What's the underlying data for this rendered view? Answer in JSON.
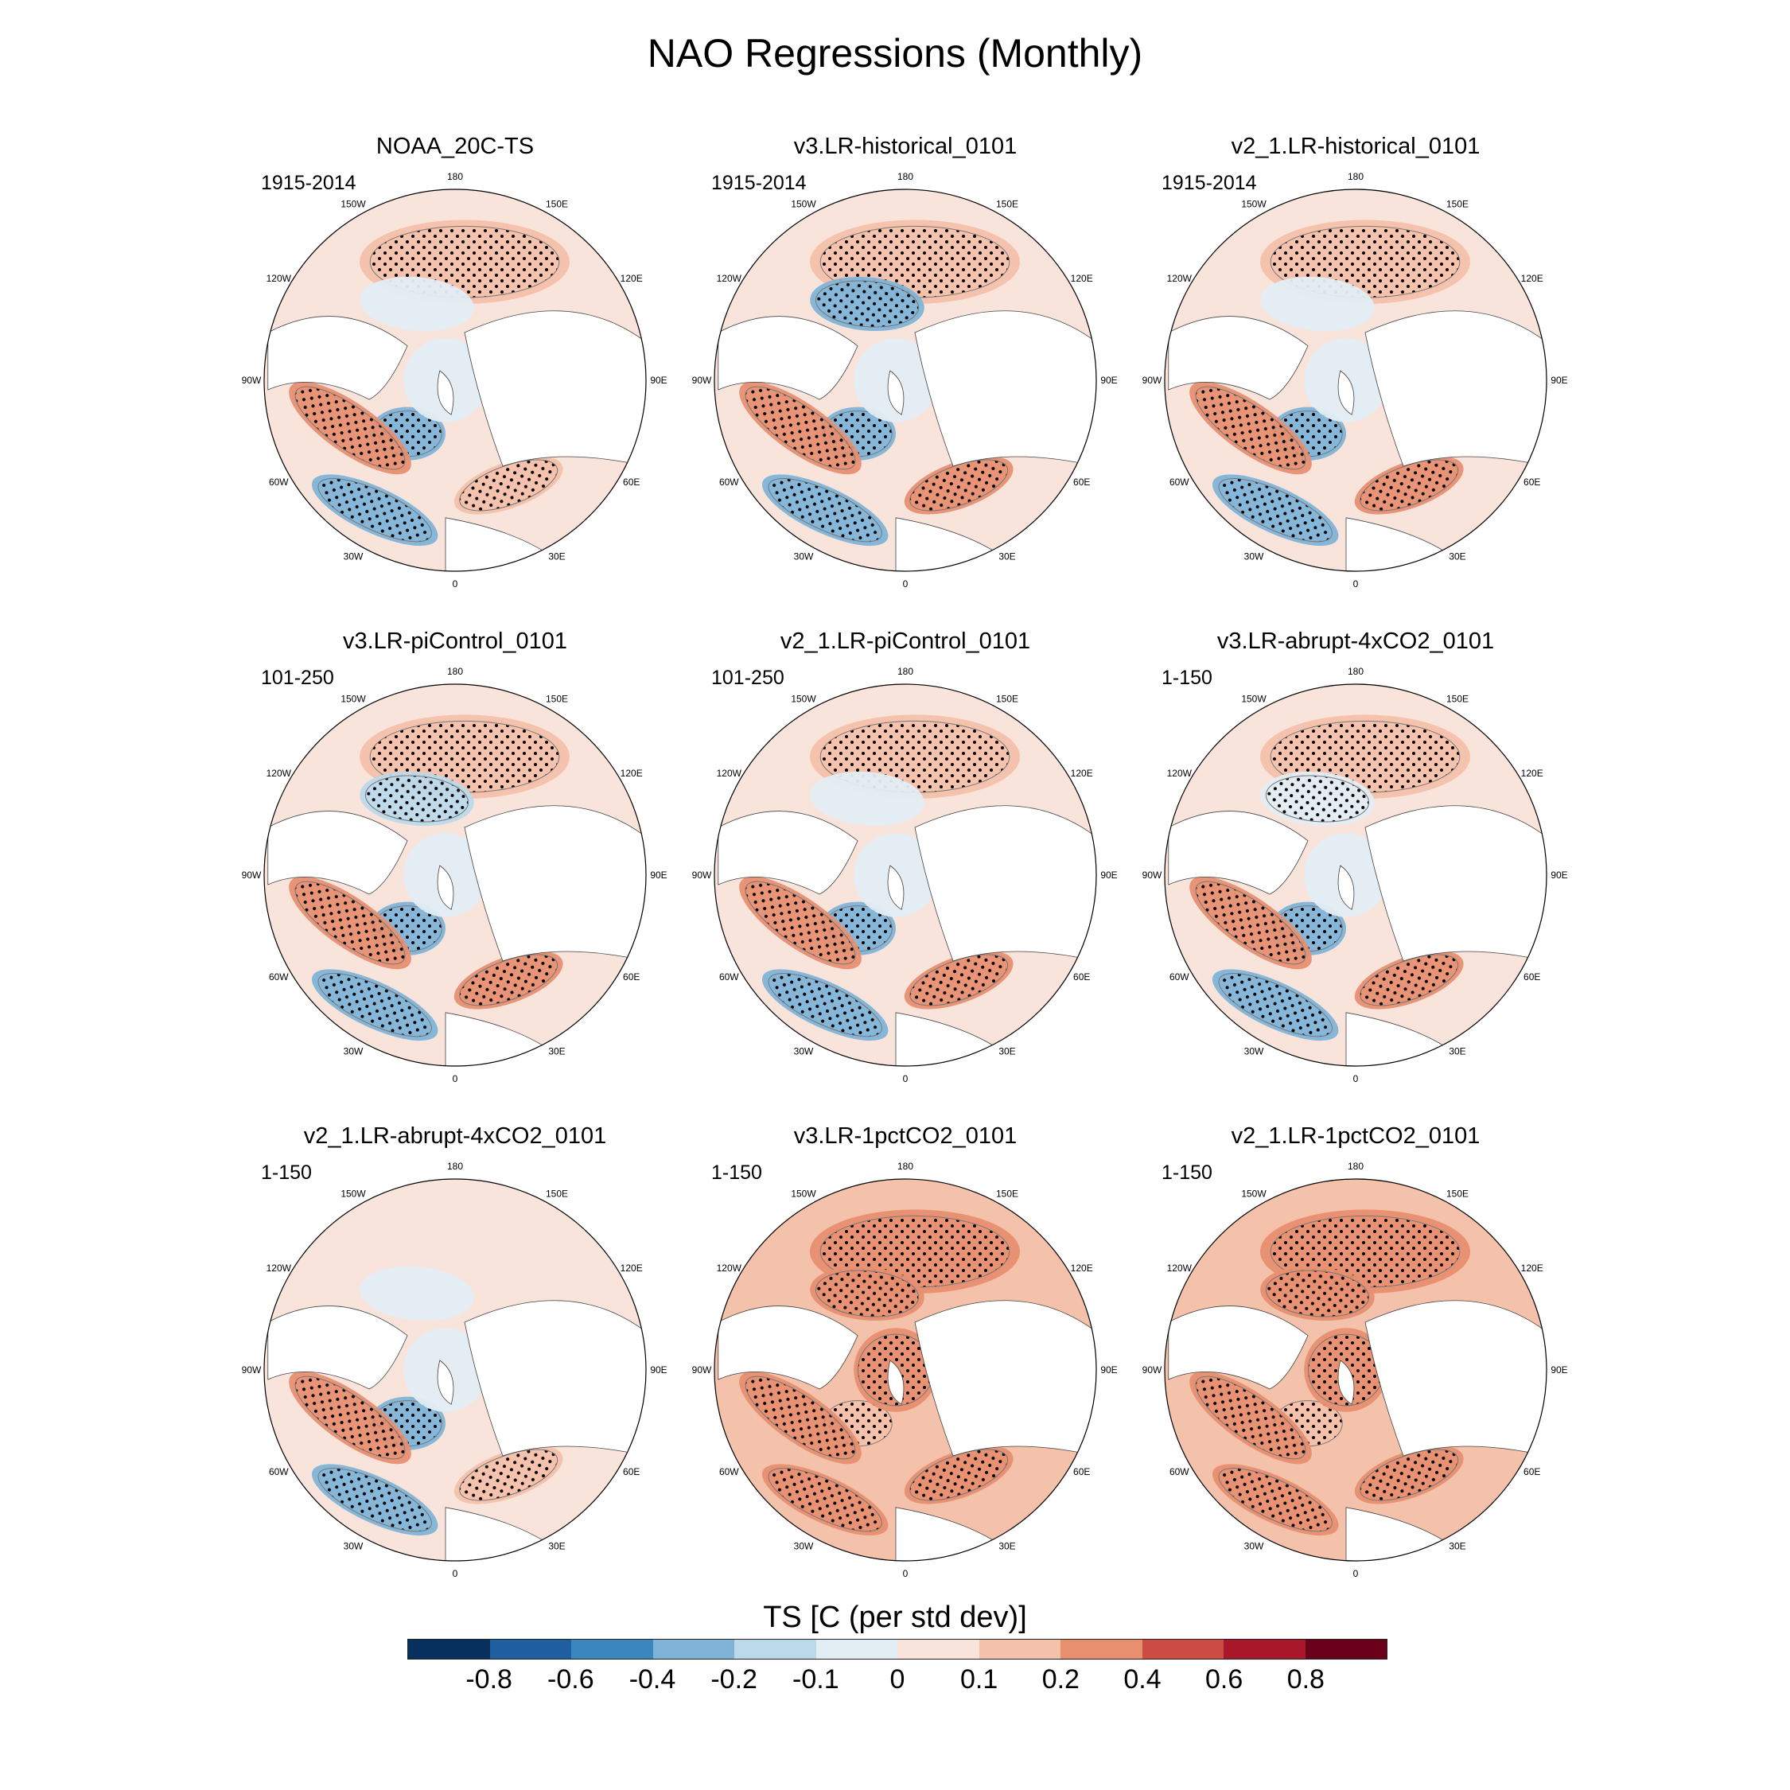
{
  "title": "NAO Regressions (Monthly)",
  "lon_labels": [
    "180",
    "150E",
    "120E",
    "90E",
    "60E",
    "30E",
    "0",
    "30W",
    "60W",
    "90W",
    "120W",
    "150W"
  ],
  "panels": [
    {
      "title": "NOAA_20C-TS",
      "period": "1915-2014",
      "pattern": {
        "pac": 0.12,
        "aleut": -0.05,
        "lab": -0.35,
        "gulf": 0.25,
        "subtrop": -0.3,
        "eur": 0.15,
        "arctic": -0.05
      }
    },
    {
      "title": "v3.LR-historical_0101",
      "period": "1915-2014",
      "pattern": {
        "pac": 0.18,
        "aleut": -0.3,
        "lab": -0.4,
        "gulf": 0.32,
        "subtrop": -0.3,
        "eur": 0.2,
        "arctic": -0.05
      }
    },
    {
      "title": "v2_1.LR-historical_0101",
      "period": "1915-2014",
      "pattern": {
        "pac": 0.12,
        "aleut": -0.05,
        "lab": -0.4,
        "gulf": 0.3,
        "subtrop": -0.3,
        "eur": 0.22,
        "arctic": -0.05
      }
    },
    {
      "title": "v3.LR-piControl_0101",
      "period": "101-250",
      "pattern": {
        "pac": 0.12,
        "aleut": -0.15,
        "lab": -0.4,
        "gulf": 0.3,
        "subtrop": -0.3,
        "eur": 0.22,
        "arctic": -0.05
      }
    },
    {
      "title": "v2_1.LR-piControl_0101",
      "period": "101-250",
      "pattern": {
        "pac": 0.12,
        "aleut": -0.05,
        "lab": -0.4,
        "gulf": 0.3,
        "subtrop": -0.3,
        "eur": 0.2,
        "arctic": -0.05
      }
    },
    {
      "title": "v3.LR-abrupt-4xCO2_0101",
      "period": "1-150",
      "pattern": {
        "pac": 0.1,
        "aleut": -0.1,
        "lab": -0.35,
        "gulf": 0.28,
        "subtrop": -0.3,
        "eur": 0.2,
        "arctic": -0.05
      }
    },
    {
      "title": "v2_1.LR-abrupt-4xCO2_0101",
      "period": "1-150",
      "pattern": {
        "pac": 0.08,
        "aleut": -0.05,
        "lab": -0.35,
        "gulf": 0.28,
        "subtrop": -0.3,
        "eur": 0.18,
        "arctic": -0.08
      }
    },
    {
      "title": "v3.LR-1pctCO2_0101",
      "period": "1-150",
      "pattern": {
        "pac": 0.35,
        "aleut": 0.3,
        "lab": 0.12,
        "gulf": 0.38,
        "subtrop": 0.25,
        "eur": 0.35,
        "arctic": 0.28
      }
    },
    {
      "title": "v2_1.LR-1pctCO2_0101",
      "period": "1-150",
      "pattern": {
        "pac": 0.3,
        "aleut": 0.28,
        "lab": 0.12,
        "gulf": 0.35,
        "subtrop": 0.2,
        "eur": 0.3,
        "arctic": 0.25
      }
    }
  ],
  "colorbar": {
    "title": "TS [C (per std dev)]",
    "tick_labels": [
      "-0.8",
      "-0.6",
      "-0.4",
      "-0.2",
      "-0.1",
      "0",
      "0.1",
      "0.2",
      "0.4",
      "0.6",
      "0.8"
    ],
    "levels": [
      -0.8,
      -0.6,
      -0.4,
      -0.2,
      -0.1,
      0,
      0.1,
      0.2,
      0.4,
      0.6,
      0.8
    ],
    "colors": [
      "#07305f",
      "#1f5fa0",
      "#3b86be",
      "#7fb4d8",
      "#bcd9ea",
      "#e3edf4",
      "#f9e4dc",
      "#f4c1aa",
      "#e88f70",
      "#cc4c43",
      "#a8182a",
      "#6b001b"
    ]
  }
}
